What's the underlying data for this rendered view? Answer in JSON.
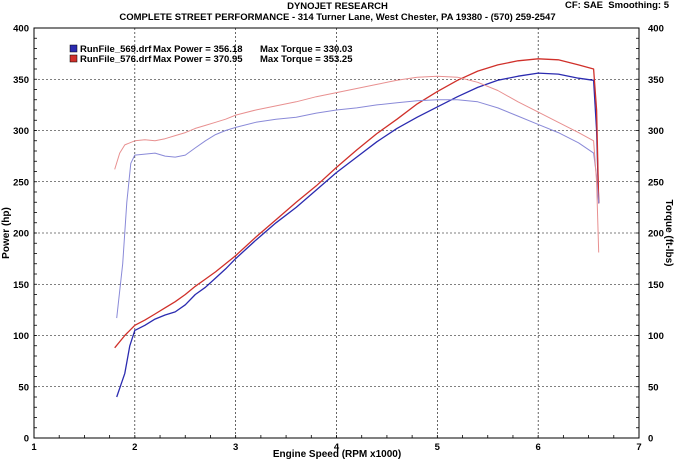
{
  "header": {
    "title": "DYNOJET RESEARCH",
    "subtitle": "COMPLETE STREET PERFORMANCE - 314 Turner Lane, West Chester, PA 19380 - (570) 259-2547",
    "correction": "CF: SAE",
    "smoothing": "Smoothing: 5"
  },
  "legend": [
    {
      "file": "RunFile_569.drf",
      "power_label": "Max Power = 356.18",
      "torque_label": "Max Torque = 330.03",
      "color": "#2b2bb0"
    },
    {
      "file": "RunFile_576.drf",
      "power_label": "Max Power = 370.95",
      "torque_label": "Max Torque = 353.25",
      "color": "#d0302a"
    }
  ],
  "chart_data": {
    "type": "line",
    "title": "DYNOJET RESEARCH",
    "xlabel": "Engine Speed (RPM x1000)",
    "ylabel": "Power (hp)",
    "y2label": "Torque (ft-lbs)",
    "xlim": [
      1,
      7
    ],
    "ylim": [
      0,
      400
    ],
    "y2lim": [
      0,
      400
    ],
    "xticks": [
      1,
      2,
      3,
      4,
      5,
      6,
      7
    ],
    "yticks": [
      0,
      50,
      100,
      150,
      200,
      250,
      300,
      350,
      400
    ],
    "y2ticks": [
      0,
      50,
      100,
      150,
      200,
      250,
      300,
      350,
      400
    ],
    "grid": true,
    "legend_position": "top-left",
    "series": [
      {
        "name": "RunFile_569.drf",
        "metric": "power",
        "color": "#2b2bb0",
        "points": [
          [
            1.82,
            40
          ],
          [
            1.9,
            63
          ],
          [
            1.95,
            90
          ],
          [
            2.0,
            105
          ],
          [
            2.1,
            110
          ],
          [
            2.2,
            116
          ],
          [
            2.3,
            120
          ],
          [
            2.4,
            123
          ],
          [
            2.5,
            130
          ],
          [
            2.6,
            140
          ],
          [
            2.7,
            147
          ],
          [
            2.8,
            156
          ],
          [
            2.9,
            165
          ],
          [
            3.0,
            175
          ],
          [
            3.2,
            193
          ],
          [
            3.4,
            210
          ],
          [
            3.6,
            225
          ],
          [
            3.8,
            242
          ],
          [
            4.0,
            259
          ],
          [
            4.2,
            274
          ],
          [
            4.4,
            289
          ],
          [
            4.6,
            302
          ],
          [
            4.8,
            313
          ],
          [
            5.0,
            323
          ],
          [
            5.2,
            333
          ],
          [
            5.4,
            342
          ],
          [
            5.6,
            349
          ],
          [
            5.8,
            353
          ],
          [
            6.0,
            356
          ],
          [
            6.2,
            355
          ],
          [
            6.4,
            351
          ],
          [
            6.55,
            349
          ],
          [
            6.58,
            300
          ],
          [
            6.6,
            229
          ]
        ]
      },
      {
        "name": "RunFile_576.drf",
        "metric": "power",
        "color": "#d0302a",
        "points": [
          [
            1.8,
            88
          ],
          [
            1.9,
            100
          ],
          [
            2.0,
            110
          ],
          [
            2.1,
            115
          ],
          [
            2.2,
            121
          ],
          [
            2.3,
            127
          ],
          [
            2.4,
            133
          ],
          [
            2.5,
            140
          ],
          [
            2.6,
            148
          ],
          [
            2.7,
            155
          ],
          [
            2.8,
            162
          ],
          [
            2.9,
            170
          ],
          [
            3.0,
            178
          ],
          [
            3.2,
            196
          ],
          [
            3.4,
            213
          ],
          [
            3.6,
            230
          ],
          [
            3.8,
            246
          ],
          [
            4.0,
            264
          ],
          [
            4.2,
            281
          ],
          [
            4.4,
            297
          ],
          [
            4.6,
            311
          ],
          [
            4.8,
            326
          ],
          [
            5.0,
            338
          ],
          [
            5.2,
            349
          ],
          [
            5.4,
            358
          ],
          [
            5.6,
            364
          ],
          [
            5.8,
            368
          ],
          [
            6.0,
            370
          ],
          [
            6.2,
            369
          ],
          [
            6.4,
            364
          ],
          [
            6.55,
            360
          ],
          [
            6.58,
            320
          ],
          [
            6.6,
            229
          ]
        ]
      },
      {
        "name": "RunFile_569.drf",
        "metric": "torque",
        "color": "#8a8ad8",
        "points": [
          [
            1.82,
            117
          ],
          [
            1.88,
            170
          ],
          [
            1.92,
            230
          ],
          [
            1.96,
            268
          ],
          [
            2.0,
            276
          ],
          [
            2.1,
            277
          ],
          [
            2.2,
            278
          ],
          [
            2.3,
            275
          ],
          [
            2.4,
            274
          ],
          [
            2.5,
            276
          ],
          [
            2.6,
            283
          ],
          [
            2.7,
            290
          ],
          [
            2.8,
            296
          ],
          [
            2.9,
            300
          ],
          [
            3.0,
            303
          ],
          [
            3.2,
            308
          ],
          [
            3.4,
            311
          ],
          [
            3.6,
            313
          ],
          [
            3.8,
            317
          ],
          [
            4.0,
            320
          ],
          [
            4.2,
            322
          ],
          [
            4.4,
            325
          ],
          [
            4.6,
            327
          ],
          [
            4.8,
            329
          ],
          [
            5.0,
            330
          ],
          [
            5.2,
            330
          ],
          [
            5.4,
            328
          ],
          [
            5.6,
            322
          ],
          [
            5.8,
            314
          ],
          [
            6.0,
            306
          ],
          [
            6.2,
            298
          ],
          [
            6.4,
            288
          ],
          [
            6.55,
            278
          ],
          [
            6.58,
            255
          ],
          [
            6.6,
            229
          ]
        ]
      },
      {
        "name": "RunFile_576.drf",
        "metric": "torque",
        "color": "#e89090",
        "points": [
          [
            1.8,
            262
          ],
          [
            1.85,
            278
          ],
          [
            1.9,
            286
          ],
          [
            2.0,
            290
          ],
          [
            2.1,
            291
          ],
          [
            2.2,
            290
          ],
          [
            2.3,
            292
          ],
          [
            2.4,
            295
          ],
          [
            2.5,
            298
          ],
          [
            2.6,
            302
          ],
          [
            2.7,
            305
          ],
          [
            2.8,
            308
          ],
          [
            2.9,
            311
          ],
          [
            3.0,
            315
          ],
          [
            3.2,
            320
          ],
          [
            3.4,
            324
          ],
          [
            3.6,
            328
          ],
          [
            3.8,
            333
          ],
          [
            4.0,
            337
          ],
          [
            4.2,
            341
          ],
          [
            4.4,
            345
          ],
          [
            4.6,
            349
          ],
          [
            4.8,
            352
          ],
          [
            5.0,
            353
          ],
          [
            5.2,
            352
          ],
          [
            5.4,
            347
          ],
          [
            5.6,
            339
          ],
          [
            5.8,
            328
          ],
          [
            6.0,
            318
          ],
          [
            6.2,
            308
          ],
          [
            6.4,
            298
          ],
          [
            6.55,
            290
          ],
          [
            6.58,
            250
          ],
          [
            6.6,
            181
          ]
        ]
      }
    ]
  }
}
